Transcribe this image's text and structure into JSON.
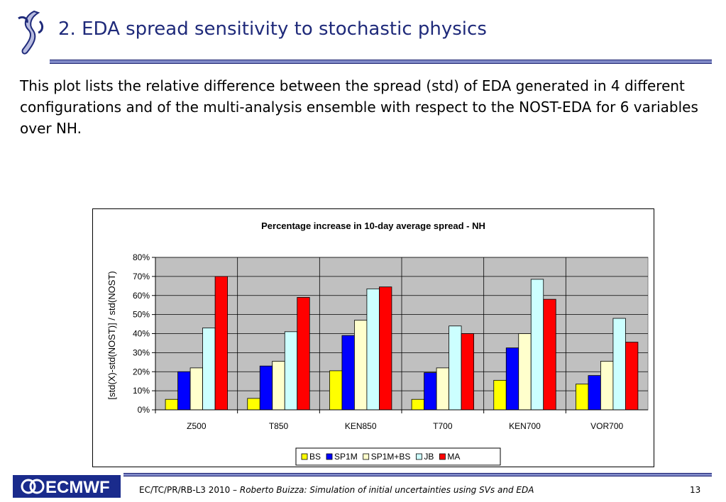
{
  "slide": {
    "title": "2. EDA spread sensitivity to stochastic physics",
    "intro": "This plot lists the relative difference between the spread (std) of EDA generated in 4 different configurations and of the multi-analysis ensemble with respect to the NOST-EDA for 6 variables over NH.",
    "footer_prefix": "EC/TC/PR/RB-L3 2010 – ",
    "footer_italic": "Roberto Buizza: Simulation of initial uncertainties using SVs and EDA",
    "page_number": "13",
    "footer_logo_text": "ECMWF",
    "colors": {
      "title": "#1f2a7a",
      "rule": "#7f89c7",
      "footer_logo_bg": "#1a2b8c"
    }
  },
  "chart_data": {
    "type": "bar",
    "title": "Percentage increase in 10-day average spread - NH",
    "xlabel": "",
    "ylabel": "[std(X)-std(NOST)] / std(NOST)",
    "ylim": [
      0,
      80
    ],
    "yticks": [
      "0%",
      "10%",
      "20%",
      "30%",
      "40%",
      "50%",
      "60%",
      "70%",
      "80%"
    ],
    "grid": true,
    "legend_position": "bottom",
    "plot_background": "#c0c0c0",
    "categories": [
      "Z500",
      "T850",
      "KEN850",
      "T700",
      "KEN700",
      "VOR700"
    ],
    "series": [
      {
        "name": "BS",
        "color": "#ffff00",
        "values": [
          5.5,
          6,
          20.5,
          5.5,
          15.5,
          13.5
        ]
      },
      {
        "name": "SP1M",
        "color": "#0000ff",
        "values": [
          20,
          23,
          39,
          19.5,
          32.5,
          18
        ]
      },
      {
        "name": "SP1M+BS",
        "color": "#ffffcc",
        "values": [
          22,
          25.5,
          47,
          22,
          40,
          25.5
        ]
      },
      {
        "name": "JB",
        "color": "#ccffff",
        "values": [
          43,
          41,
          63.5,
          44,
          68.5,
          48
        ]
      },
      {
        "name": "MA",
        "color": "#ff0000",
        "values": [
          70,
          59,
          64.5,
          40,
          58,
          35.5
        ]
      }
    ]
  }
}
